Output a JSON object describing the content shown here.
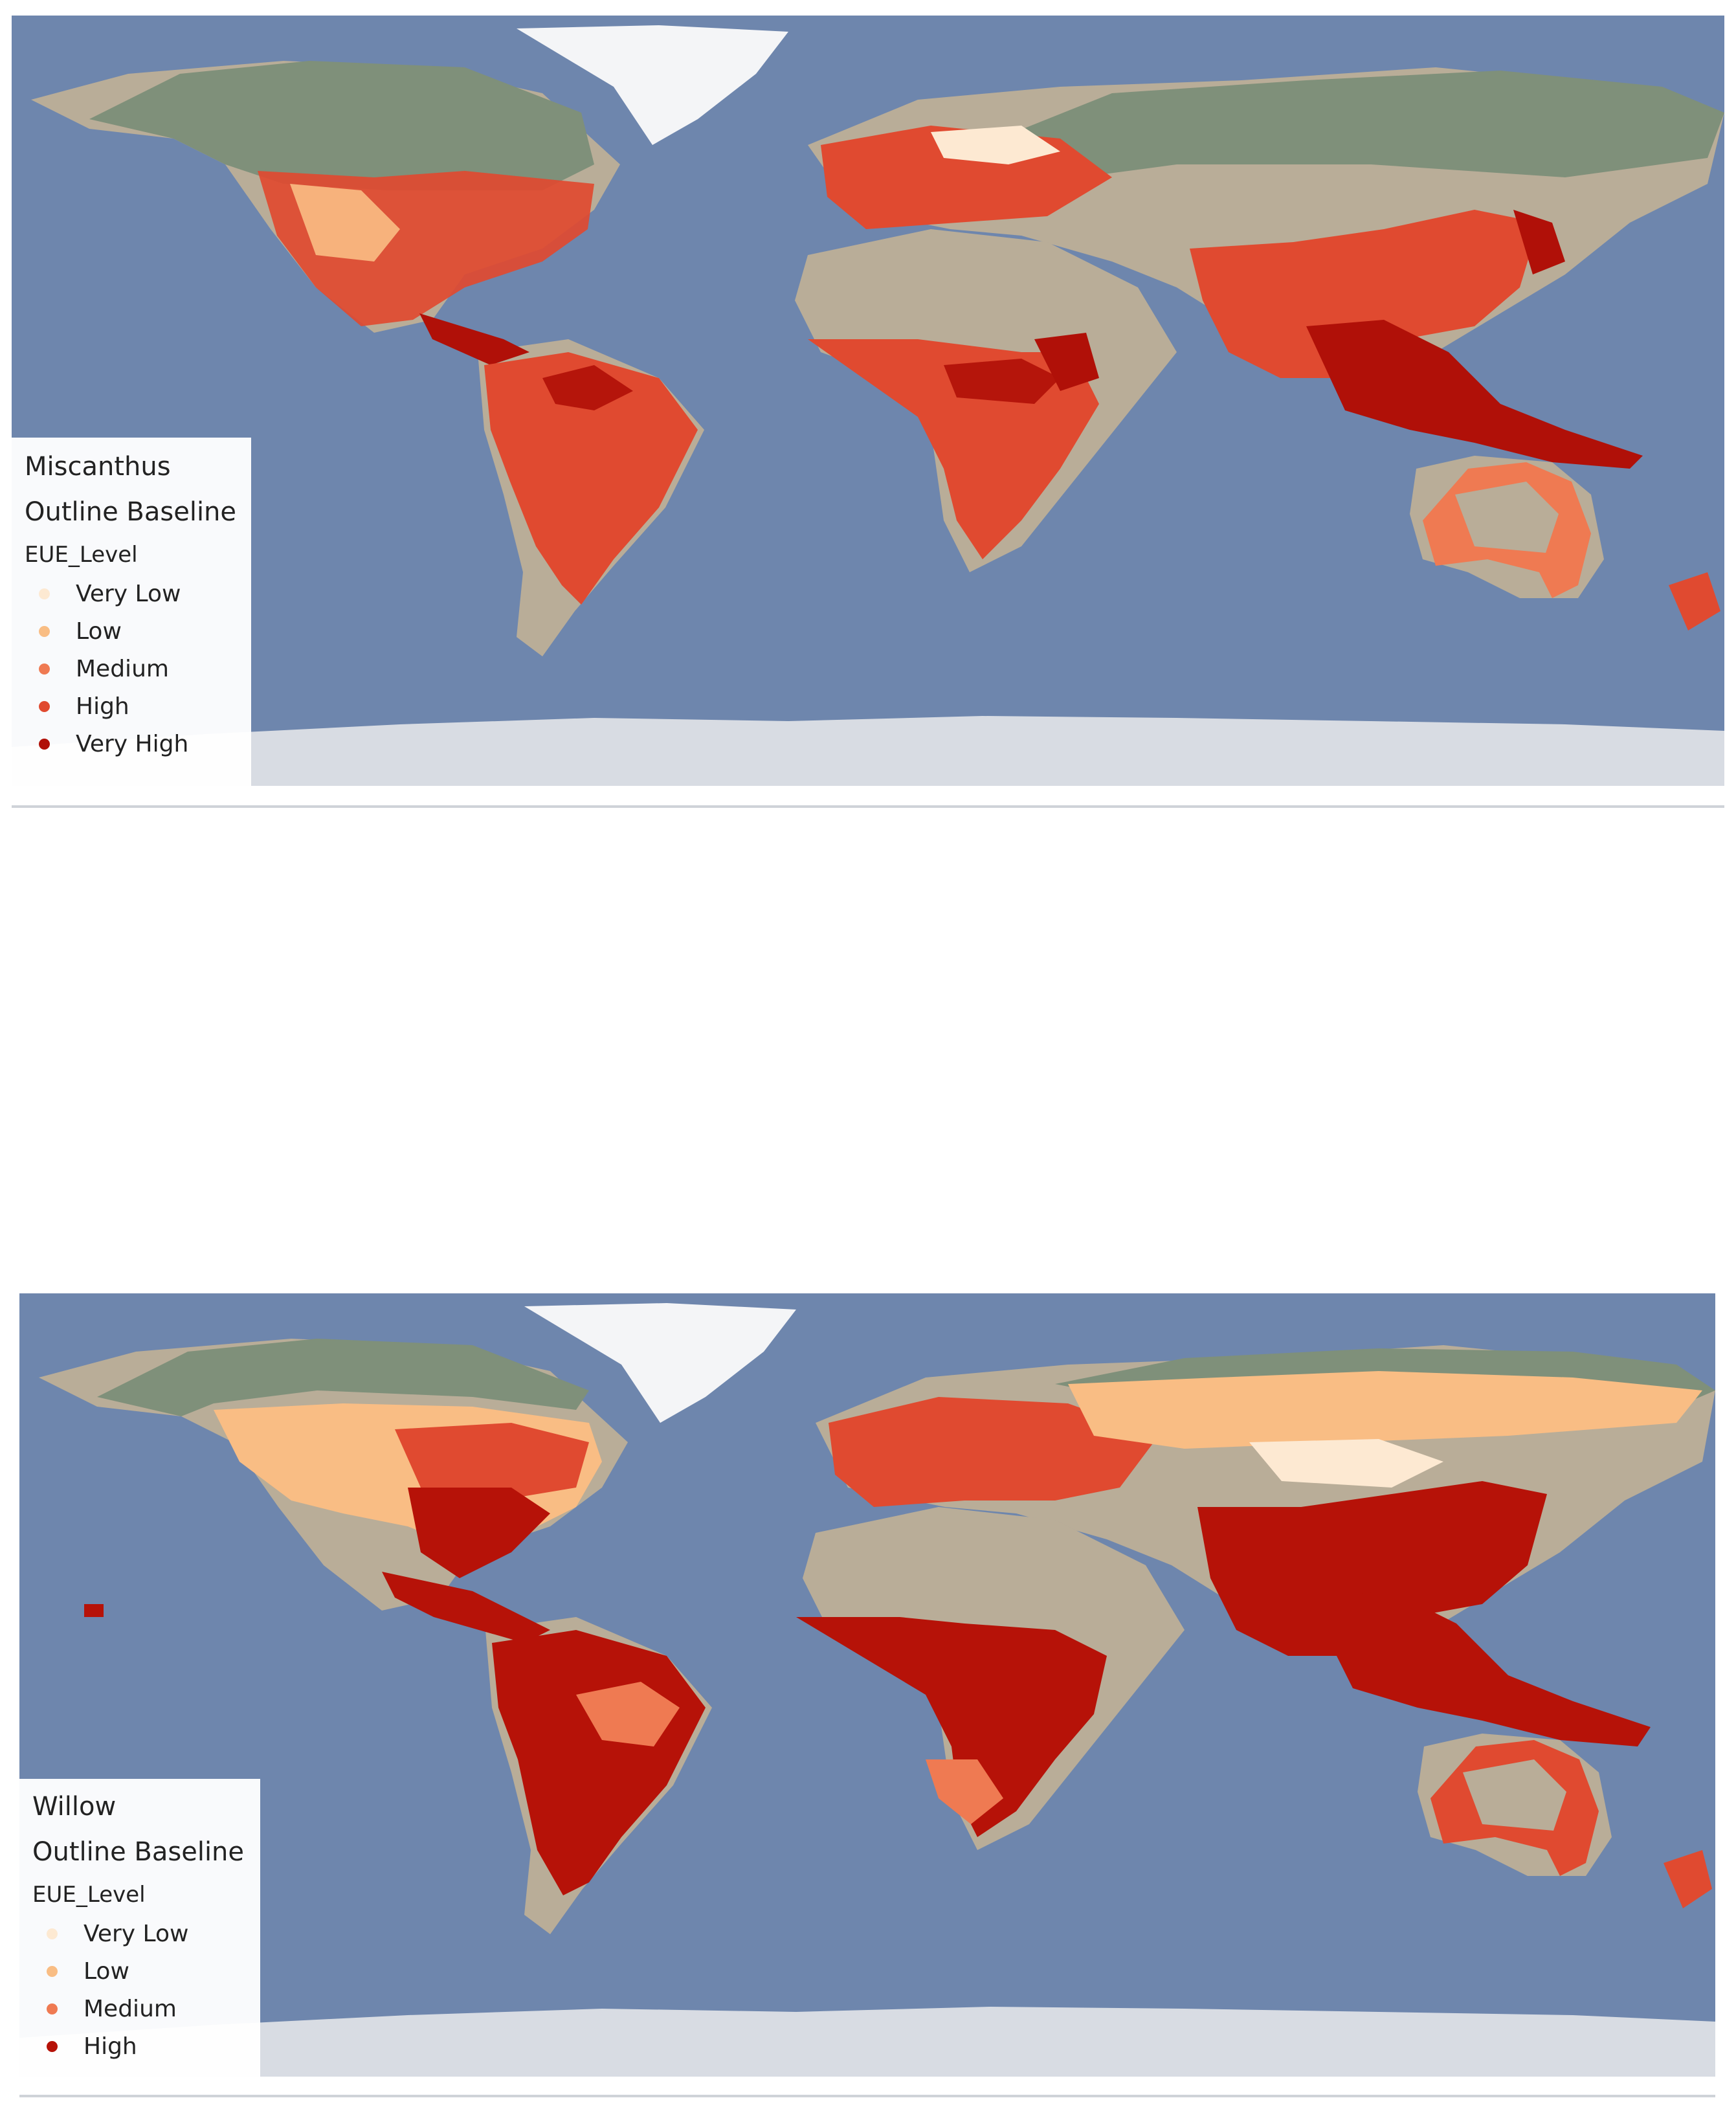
{
  "colors": {
    "ocean": "#6e86ad",
    "land_base": "#b9ad98",
    "boreal_green": "#7f907a",
    "greenland_ice": "#f4f5f7",
    "antarctica": "#d8dce3",
    "very_low": "#fde9d2",
    "low": "#f9bd84",
    "medium": "#ef7a52",
    "high": "#e04a30",
    "very_high": "#b01008",
    "high_willow": "#b61208"
  },
  "maps": [
    {
      "title": "Miscanthus",
      "layer": "Outline Baseline",
      "field": "EUE_Level",
      "legend": [
        {
          "label": "Very Low",
          "color": "#fde9d2"
        },
        {
          "label": "Low",
          "color": "#f9bd84"
        },
        {
          "label": "Medium",
          "color": "#ef7a52"
        },
        {
          "label": "High",
          "color": "#e04a30"
        },
        {
          "label": "Very High",
          "color": "#b01008"
        }
      ]
    },
    {
      "title": "Willow",
      "layer": "Outline Baseline",
      "field": "EUE_Level",
      "legend": [
        {
          "label": "Very Low",
          "color": "#fde9d2"
        },
        {
          "label": "Low",
          "color": "#f9bd84"
        },
        {
          "label": "Medium",
          "color": "#ef7a52"
        },
        {
          "label": "High",
          "color": "#b61208"
        }
      ]
    }
  ]
}
